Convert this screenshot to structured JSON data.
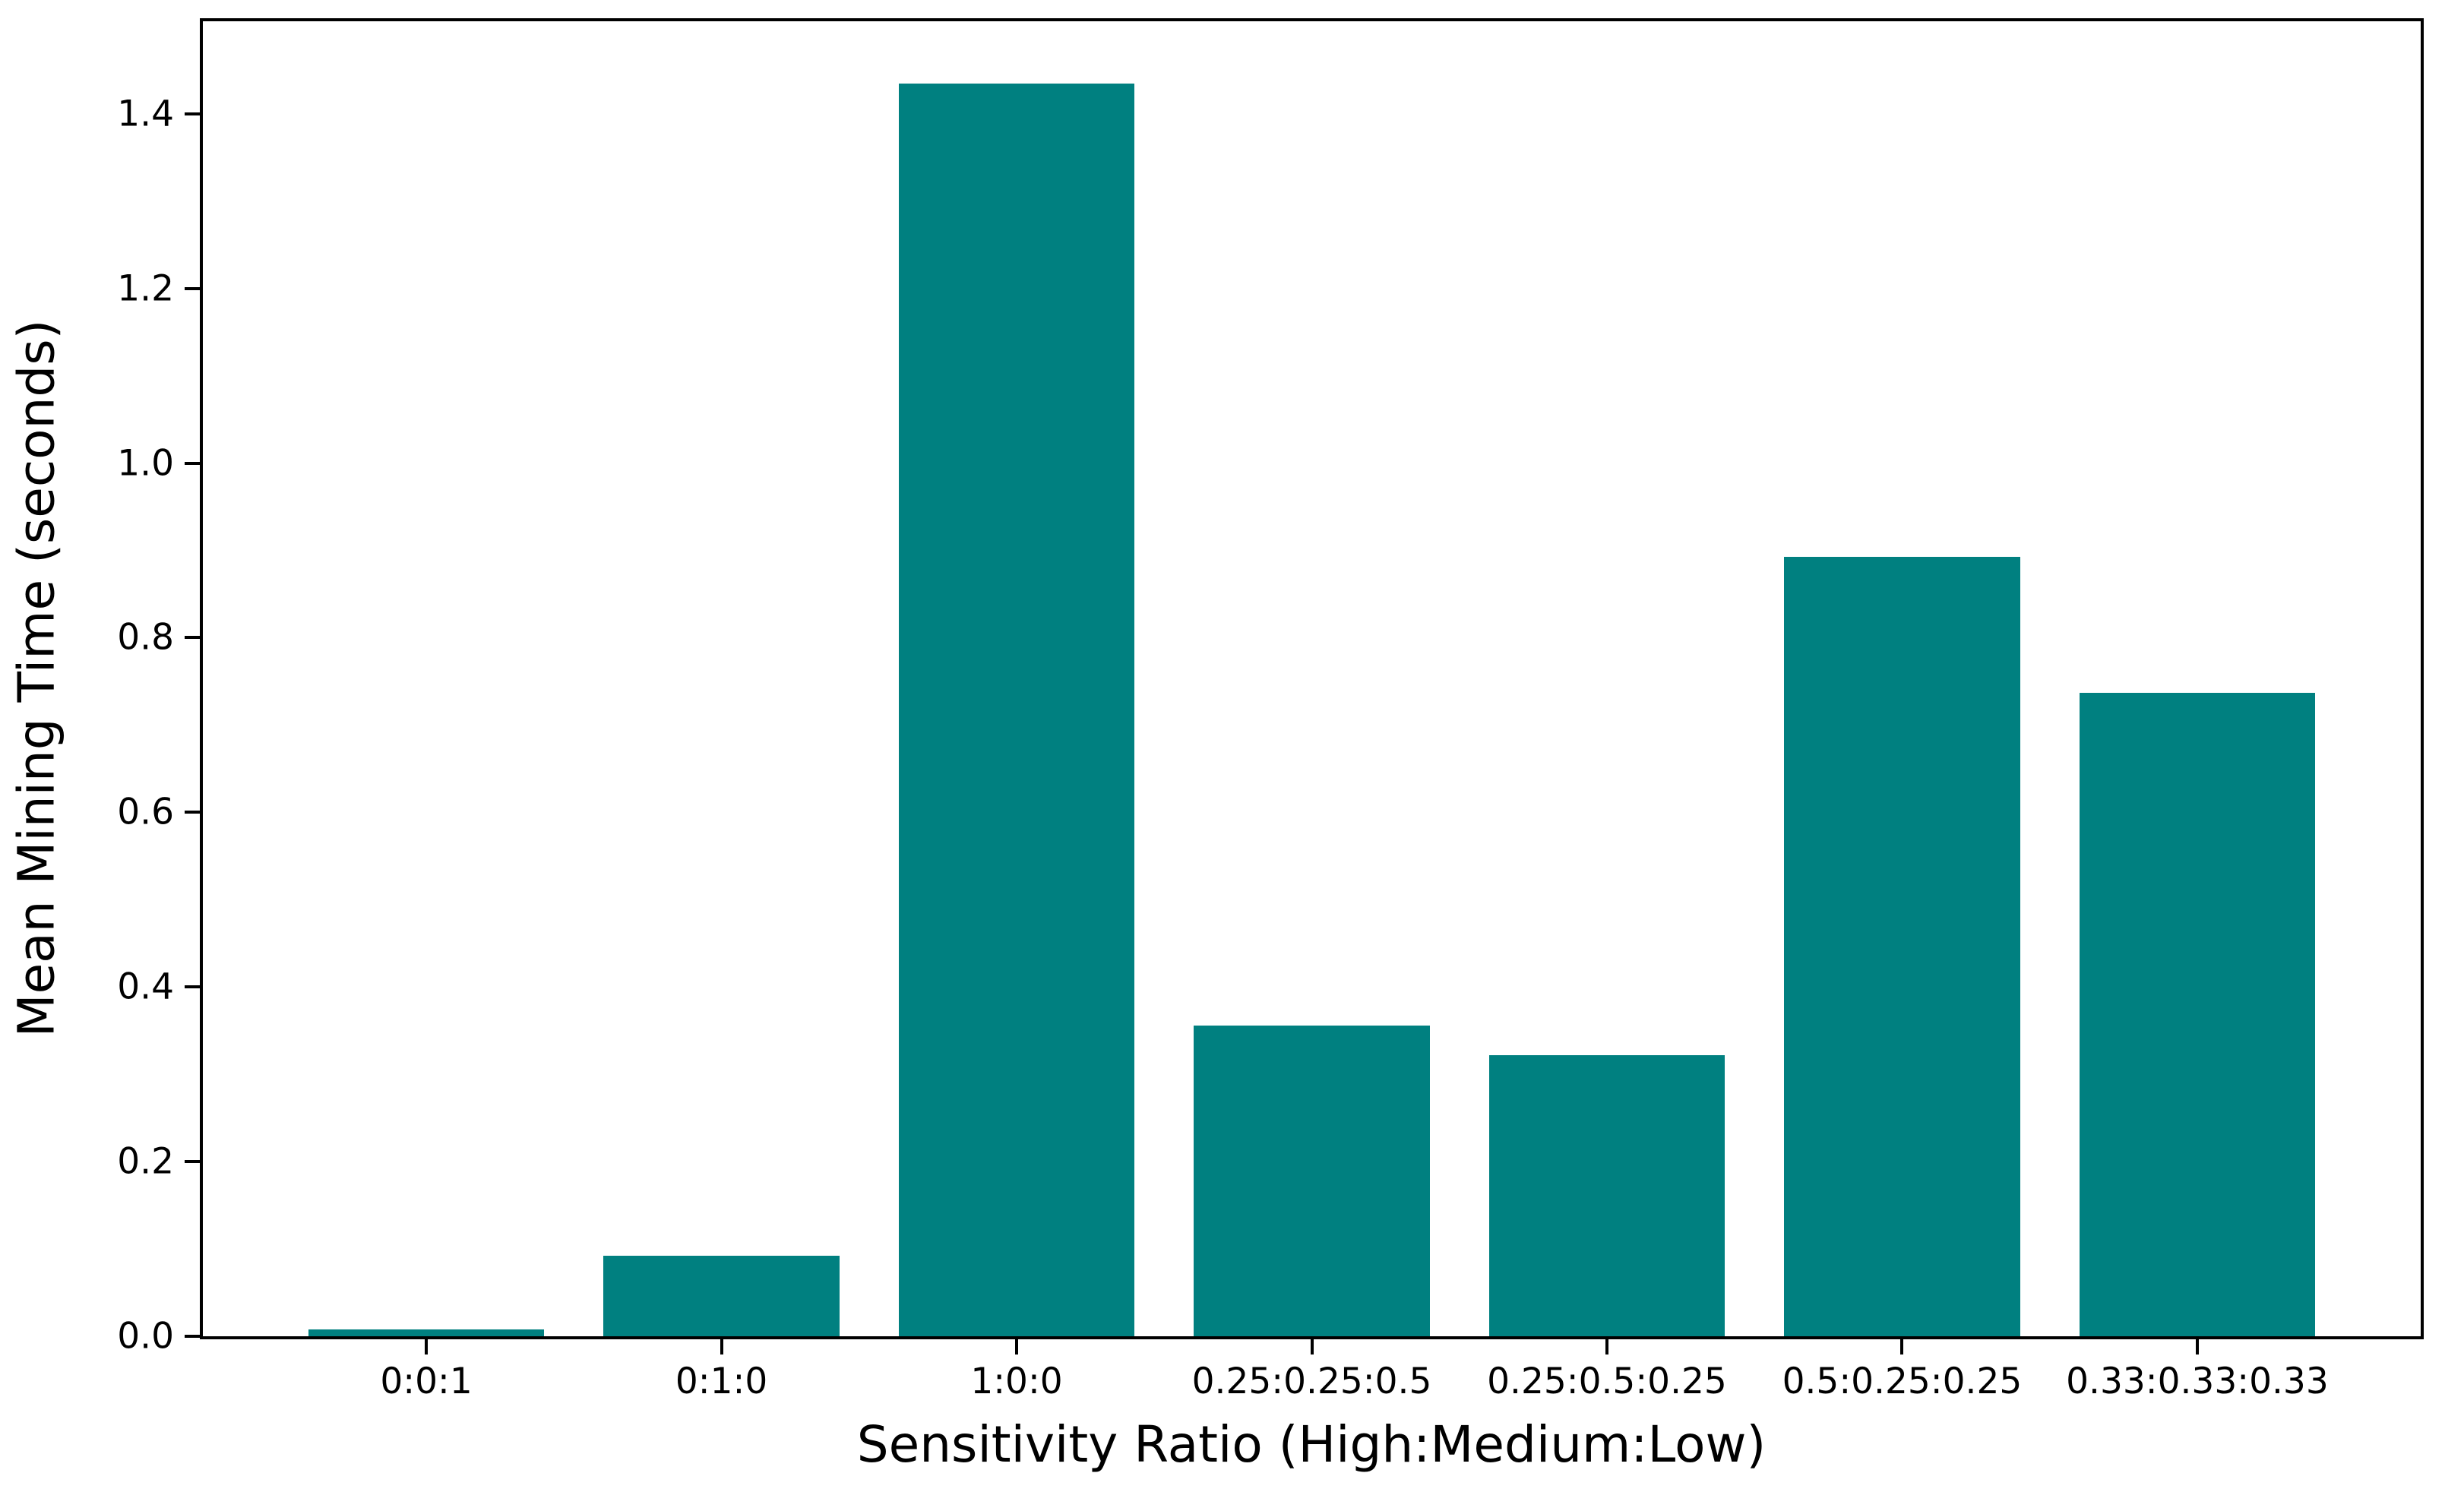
{
  "chart_data": {
    "type": "bar",
    "title": "",
    "categories": [
      "0:0:1",
      "0:1:0",
      "1:0:0",
      "0.25:0.25:0.5",
      "0.25:0.5:0.25",
      "0.5:0.25:0.25",
      "0.33:0.33:0.33"
    ],
    "values": [
      0.008,
      0.092,
      1.435,
      0.356,
      0.322,
      0.893,
      0.737
    ],
    "xlabel": "Sensitivity Ratio (High:Medium:Low)",
    "ylabel": "Mean Mining Time (seconds)",
    "yticks": [
      0.0,
      0.2,
      0.4,
      0.6,
      0.8,
      1.0,
      1.2,
      1.4
    ],
    "ytick_labels": [
      "0.0",
      "0.2",
      "0.4",
      "0.6",
      "0.8",
      "1.0",
      "1.2",
      "1.4"
    ],
    "ylim": [
      0,
      1.506
    ],
    "xlim": [
      -0.757,
      6.757
    ],
    "bar_width": 0.8,
    "bar_color": "#008080",
    "axis_color": "#000000",
    "background_color": "#ffffff",
    "grid": false,
    "legend_position": "none"
  }
}
